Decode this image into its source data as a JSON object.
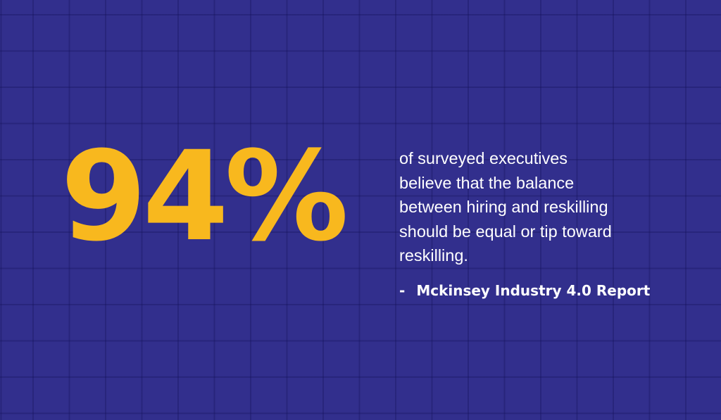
{
  "stat": "94%",
  "body_lines": [
    "of surveyed executives",
    "believe that the balance",
    "between hiring and reskilling",
    "should be equal or tip toward",
    "reskilling."
  ],
  "source": {
    "dash": "-",
    "text": "Mckinsey Industry 4.0 Report"
  }
}
